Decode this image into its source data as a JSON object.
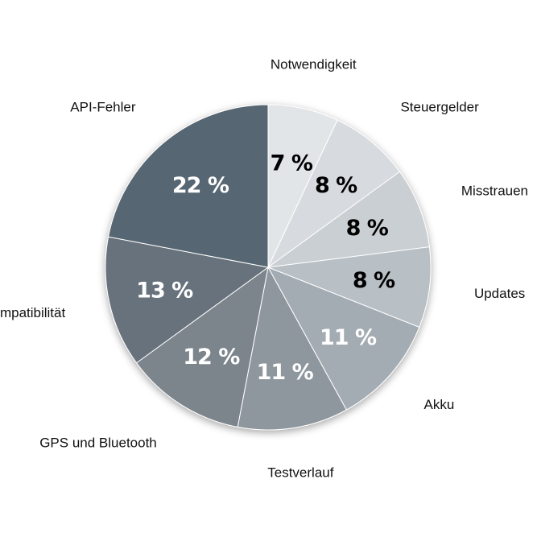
{
  "chart_data": {
    "type": "pie",
    "title": "",
    "categories": [
      "Notwendigkeit",
      "Steuergelder",
      "Misstrauen",
      "Updates",
      "Akku",
      "Testverlauf",
      "GPS und Bluetooth",
      "Kompatibilität",
      "API-Fehler"
    ],
    "values": [
      7,
      8,
      8,
      8,
      11,
      11,
      12,
      13,
      22
    ],
    "data_labels": [
      "7 %",
      "8 %",
      "8 %",
      "8 %",
      "11 %",
      "11 %",
      "12 %",
      "13 %",
      "22 %"
    ],
    "colors": [
      "#e2e5e8",
      "#d7dbdf",
      "#cacfd4",
      "#b8bfc5",
      "#a4acb3",
      "#8f979e",
      "#7b848c",
      "#67727b",
      "#566672"
    ],
    "label_colors": [
      "#000000",
      "#000000",
      "#000000",
      "#000000",
      "#ffffff",
      "#ffffff",
      "#ffffff",
      "#ffffff",
      "#ffffff"
    ],
    "start": "12 o'clock",
    "direction": "clockwise",
    "legend": "none"
  }
}
